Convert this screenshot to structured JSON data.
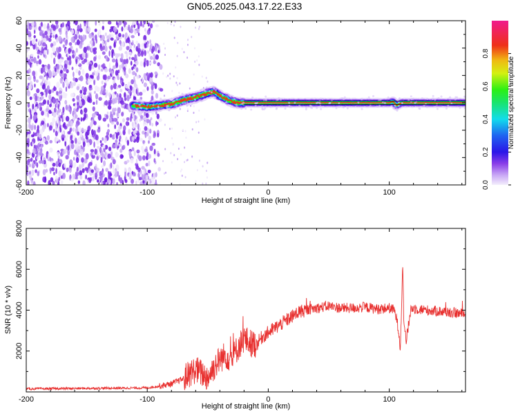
{
  "title": "GN05.2025.043.17.22.E33",
  "chart_data": [
    {
      "type": "heatmap",
      "xlabel": "Height of straight line (km)",
      "ylabel": "Frequency (Hz)",
      "xlim": [
        -200,
        163
      ],
      "ylim": [
        -60,
        60
      ],
      "x_ticks": [
        -200,
        -100,
        0,
        100
      ],
      "y_ticks": [
        60,
        40,
        20,
        0,
        -20,
        -40,
        -60
      ],
      "colorbar": {
        "label": "Normalized spectral amplitude",
        "range": [
          0,
          1
        ],
        "ticks": [
          0.0,
          0.2,
          0.4,
          0.6,
          0.8
        ]
      },
      "noise_region_km": [
        -200,
        -87
      ],
      "signal_track": {
        "x": [
          -112,
          -100,
          -90,
          -80,
          -70,
          -60,
          -50,
          -45,
          -40,
          -35,
          -30,
          -25,
          -20,
          -15,
          -10,
          0,
          20,
          40,
          60,
          80,
          100,
          103,
          106,
          110,
          130,
          150,
          163
        ],
        "y": [
          -2,
          -3,
          -2,
          -1,
          2,
          4,
          7,
          8,
          5,
          3,
          1,
          0,
          0,
          0,
          0,
          0,
          0,
          0,
          0,
          0,
          0,
          1,
          -2,
          0,
          0,
          0,
          0
        ]
      }
    },
    {
      "type": "line",
      "xlabel": "Height of straight line (km)",
      "ylabel": "SNR (10 * v/v)",
      "xlim": [
        -200,
        163
      ],
      "ylim": [
        0,
        8000
      ],
      "x_ticks": [
        -200,
        -100,
        0,
        100
      ],
      "y_ticks": [
        2000,
        4000,
        6000,
        8000
      ],
      "color": "#e8302f",
      "series": [
        {
          "x": [
            -200,
            -180,
            -160,
            -140,
            -120,
            -100,
            -90,
            -80,
            -70,
            -65,
            -60,
            -55,
            -50,
            -45,
            -40,
            -35,
            -30,
            -25,
            -20,
            -15,
            -10,
            -5,
            0,
            10,
            20,
            25,
            30,
            40,
            50,
            60,
            70,
            80,
            90,
            100,
            104,
            106,
            108,
            109,
            110,
            111,
            112,
            114,
            118,
            130,
            150,
            163
          ],
          "y": [
            150,
            160,
            170,
            180,
            190,
            200,
            280,
            400,
            650,
            900,
            1100,
            900,
            700,
            1200,
            1600,
            1800,
            1600,
            2200,
            2600,
            2400,
            2300,
            2700,
            2900,
            3300,
            3700,
            3900,
            4000,
            4100,
            4200,
            4100,
            4100,
            4150,
            4050,
            4100,
            4000,
            3600,
            2900,
            2100,
            3800,
            6500,
            3500,
            2500,
            4100,
            4000,
            3900,
            3800
          ]
        }
      ]
    }
  ]
}
